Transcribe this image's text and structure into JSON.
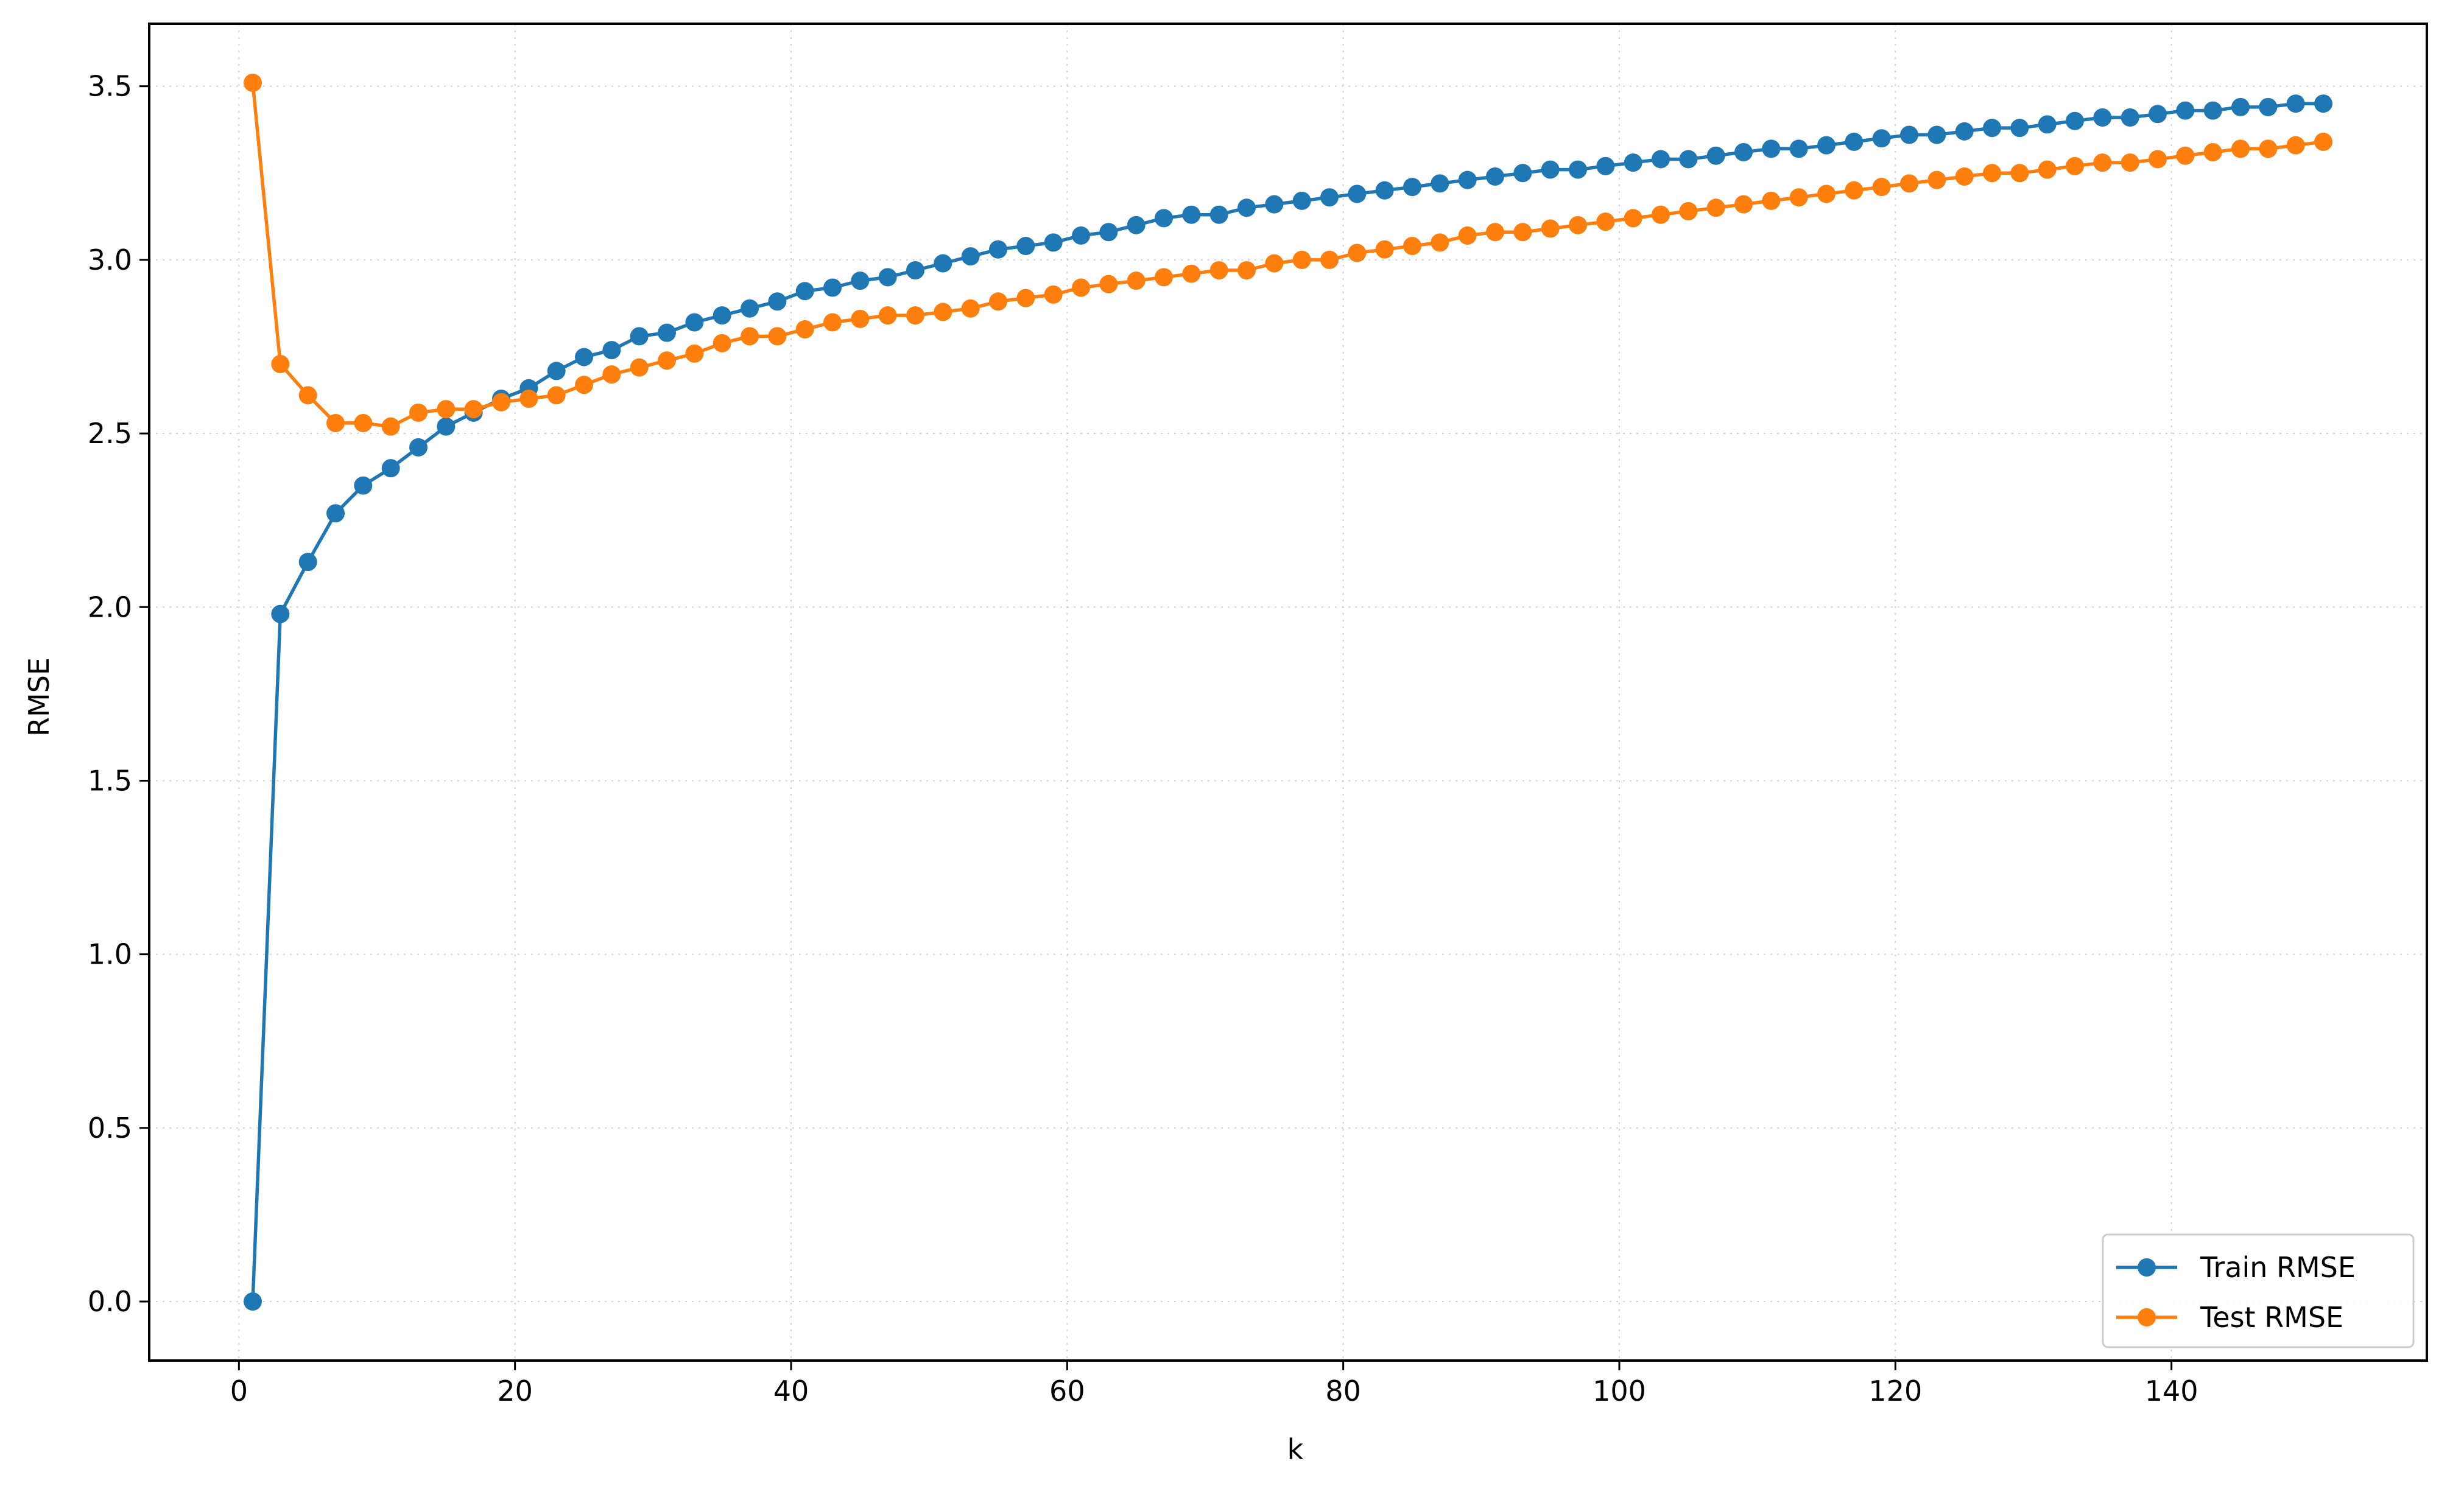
{
  "chart_data": {
    "type": "line",
    "title": "",
    "xlabel": "k",
    "ylabel": "RMSE",
    "xlim": [
      -6.5,
      158.5
    ],
    "ylim": [
      -0.17,
      3.68
    ],
    "xticks": [
      0,
      20,
      40,
      60,
      80,
      100,
      120,
      140
    ],
    "yticks": [
      0.0,
      0.5,
      1.0,
      1.5,
      2.0,
      2.5,
      3.0,
      3.5
    ],
    "xtick_labels": [
      "0",
      "20",
      "40",
      "60",
      "80",
      "100",
      "120",
      "140"
    ],
    "ytick_labels": [
      "0.0",
      "0.5",
      "1.0",
      "1.5",
      "2.0",
      "2.5",
      "3.0",
      "3.5"
    ],
    "grid": true,
    "legend_position": "lower-right",
    "x": [
      1,
      3,
      5,
      7,
      9,
      11,
      13,
      15,
      17,
      19,
      21,
      23,
      25,
      27,
      29,
      31,
      33,
      35,
      37,
      39,
      41,
      43,
      45,
      47,
      49,
      51,
      53,
      55,
      57,
      59,
      61,
      63,
      65,
      67,
      69,
      71,
      73,
      75,
      77,
      79,
      81,
      83,
      85,
      87,
      89,
      91,
      93,
      95,
      97,
      99,
      101,
      103,
      105,
      107,
      109,
      111,
      113,
      115,
      117,
      119,
      121,
      123,
      125,
      127,
      129,
      131,
      133,
      135,
      137,
      139,
      141,
      143,
      145,
      147,
      149,
      151
    ],
    "series": [
      {
        "name": "Train RMSE",
        "color": "#1f77b4",
        "values": [
          0.0,
          1.98,
          2.13,
          2.27,
          2.35,
          2.4,
          2.46,
          2.52,
          2.56,
          2.6,
          2.63,
          2.68,
          2.72,
          2.74,
          2.78,
          2.79,
          2.82,
          2.84,
          2.86,
          2.88,
          2.91,
          2.92,
          2.94,
          2.95,
          2.97,
          2.99,
          3.01,
          3.03,
          3.04,
          3.05,
          3.07,
          3.08,
          3.1,
          3.12,
          3.13,
          3.13,
          3.15,
          3.16,
          3.17,
          3.18,
          3.19,
          3.2,
          3.21,
          3.22,
          3.23,
          3.24,
          3.25,
          3.26,
          3.26,
          3.27,
          3.28,
          3.29,
          3.29,
          3.3,
          3.31,
          3.32,
          3.32,
          3.33,
          3.34,
          3.35,
          3.36,
          3.36,
          3.37,
          3.38,
          3.38,
          3.39,
          3.4,
          3.41,
          3.41,
          3.42,
          3.43,
          3.43,
          3.44,
          3.44,
          3.45,
          3.45
        ]
      },
      {
        "name": "Test RMSE",
        "color": "#ff7f0e",
        "values": [
          3.51,
          2.7,
          2.61,
          2.53,
          2.53,
          2.52,
          2.56,
          2.57,
          2.57,
          2.59,
          2.6,
          2.61,
          2.64,
          2.67,
          2.69,
          2.71,
          2.73,
          2.76,
          2.78,
          2.78,
          2.8,
          2.82,
          2.83,
          2.84,
          2.84,
          2.85,
          2.86,
          2.88,
          2.89,
          2.9,
          2.92,
          2.93,
          2.94,
          2.95,
          2.96,
          2.97,
          2.97,
          2.99,
          3.0,
          3.0,
          3.02,
          3.03,
          3.04,
          3.05,
          3.07,
          3.08,
          3.08,
          3.09,
          3.1,
          3.11,
          3.12,
          3.13,
          3.14,
          3.15,
          3.16,
          3.17,
          3.18,
          3.19,
          3.2,
          3.21,
          3.22,
          3.23,
          3.24,
          3.25,
          3.25,
          3.26,
          3.27,
          3.28,
          3.28,
          3.29,
          3.3,
          3.31,
          3.32,
          3.32,
          3.33,
          3.34
        ]
      }
    ]
  }
}
